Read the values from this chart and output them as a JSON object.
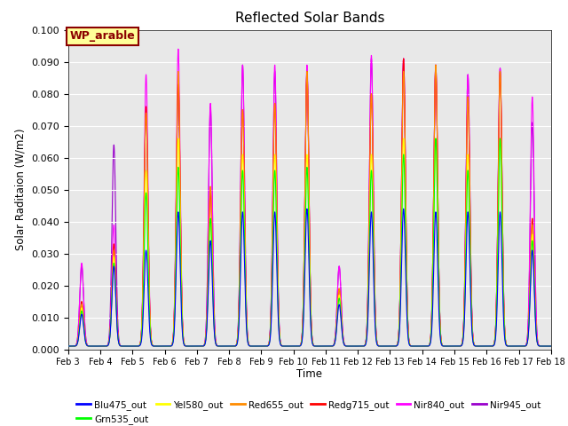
{
  "title": "Reflected Solar Bands",
  "xlabel": "Time",
  "ylabel": "Solar Raditaion (W/m2)",
  "annotation": "WP_arable",
  "annotation_color": "#8B0000",
  "annotation_bg": "#FFFF99",
  "ylim": [
    0,
    0.1
  ],
  "yticks": [
    0.0,
    0.01,
    0.02,
    0.03,
    0.04,
    0.05,
    0.06,
    0.07,
    0.08,
    0.09,
    0.1
  ],
  "xtick_labels": [
    "Feb 3",
    "Feb 4",
    "Feb 5",
    "Feb 6",
    "Feb 7",
    "Feb 8",
    "Feb 9",
    "Feb 10",
    "Feb 11",
    "Feb 12",
    "Feb 13",
    "Feb 14",
    "Feb 15",
    "Feb 16",
    "Feb 17",
    "Feb 18"
  ],
  "bg_color": "#e8e8e8",
  "series_order": [
    "Nir945_out",
    "Nir840_out",
    "Redg715_out",
    "Red655_out",
    "Yel580_out",
    "Grn535_out",
    "Blu475_out"
  ],
  "series": {
    "Blu475_out": {
      "color": "#0000FF",
      "zorder": 7
    },
    "Grn535_out": {
      "color": "#00FF00",
      "zorder": 6
    },
    "Yel580_out": {
      "color": "#FFFF00",
      "zorder": 5
    },
    "Red655_out": {
      "color": "#FF8C00",
      "zorder": 4
    },
    "Redg715_out": {
      "color": "#FF0000",
      "zorder": 3
    },
    "Nir840_out": {
      "color": "#FF00FF",
      "zorder": 2
    },
    "Nir945_out": {
      "color": "#9900CC",
      "zorder": 1
    }
  },
  "legend_order": [
    "Blu475_out",
    "Grn535_out",
    "Yel580_out",
    "Red655_out",
    "Redg715_out",
    "Nir840_out",
    "Nir945_out"
  ],
  "peak_days": [
    3.42,
    4.42,
    5.42,
    6.42,
    7.42,
    8.42,
    9.42,
    10.42,
    11.42,
    12.42,
    13.42,
    14.42,
    15.42,
    16.42,
    17.42
  ],
  "peak_heights": {
    "Blu475_out": [
      0.01,
      0.025,
      0.03,
      0.042,
      0.033,
      0.042,
      0.042,
      0.043,
      0.013,
      0.042,
      0.043,
      0.042,
      0.042,
      0.042,
      0.03
    ],
    "Grn535_out": [
      0.011,
      0.026,
      0.048,
      0.056,
      0.04,
      0.055,
      0.055,
      0.056,
      0.015,
      0.055,
      0.06,
      0.065,
      0.055,
      0.065,
      0.033
    ],
    "Yel580_out": [
      0.012,
      0.028,
      0.055,
      0.065,
      0.04,
      0.06,
      0.06,
      0.06,
      0.016,
      0.06,
      0.065,
      0.065,
      0.06,
      0.065,
      0.035
    ],
    "Red655_out": [
      0.013,
      0.03,
      0.073,
      0.086,
      0.05,
      0.074,
      0.076,
      0.086,
      0.018,
      0.079,
      0.086,
      0.088,
      0.078,
      0.086,
      0.038
    ],
    "Redg715_out": [
      0.014,
      0.032,
      0.075,
      0.082,
      0.048,
      0.074,
      0.076,
      0.086,
      0.018,
      0.079,
      0.09,
      0.088,
      0.078,
      0.086,
      0.04
    ],
    "Nir840_out": [
      0.026,
      0.038,
      0.085,
      0.093,
      0.076,
      0.088,
      0.088,
      0.088,
      0.025,
      0.091,
      0.09,
      0.088,
      0.085,
      0.087,
      0.078
    ],
    "Nir945_out": [
      0.025,
      0.063,
      0.073,
      0.082,
      0.075,
      0.088,
      0.086,
      0.086,
      0.025,
      0.09,
      0.09,
      0.088,
      0.085,
      0.087,
      0.07
    ]
  },
  "sigma": 0.06,
  "baseline": 0.001
}
